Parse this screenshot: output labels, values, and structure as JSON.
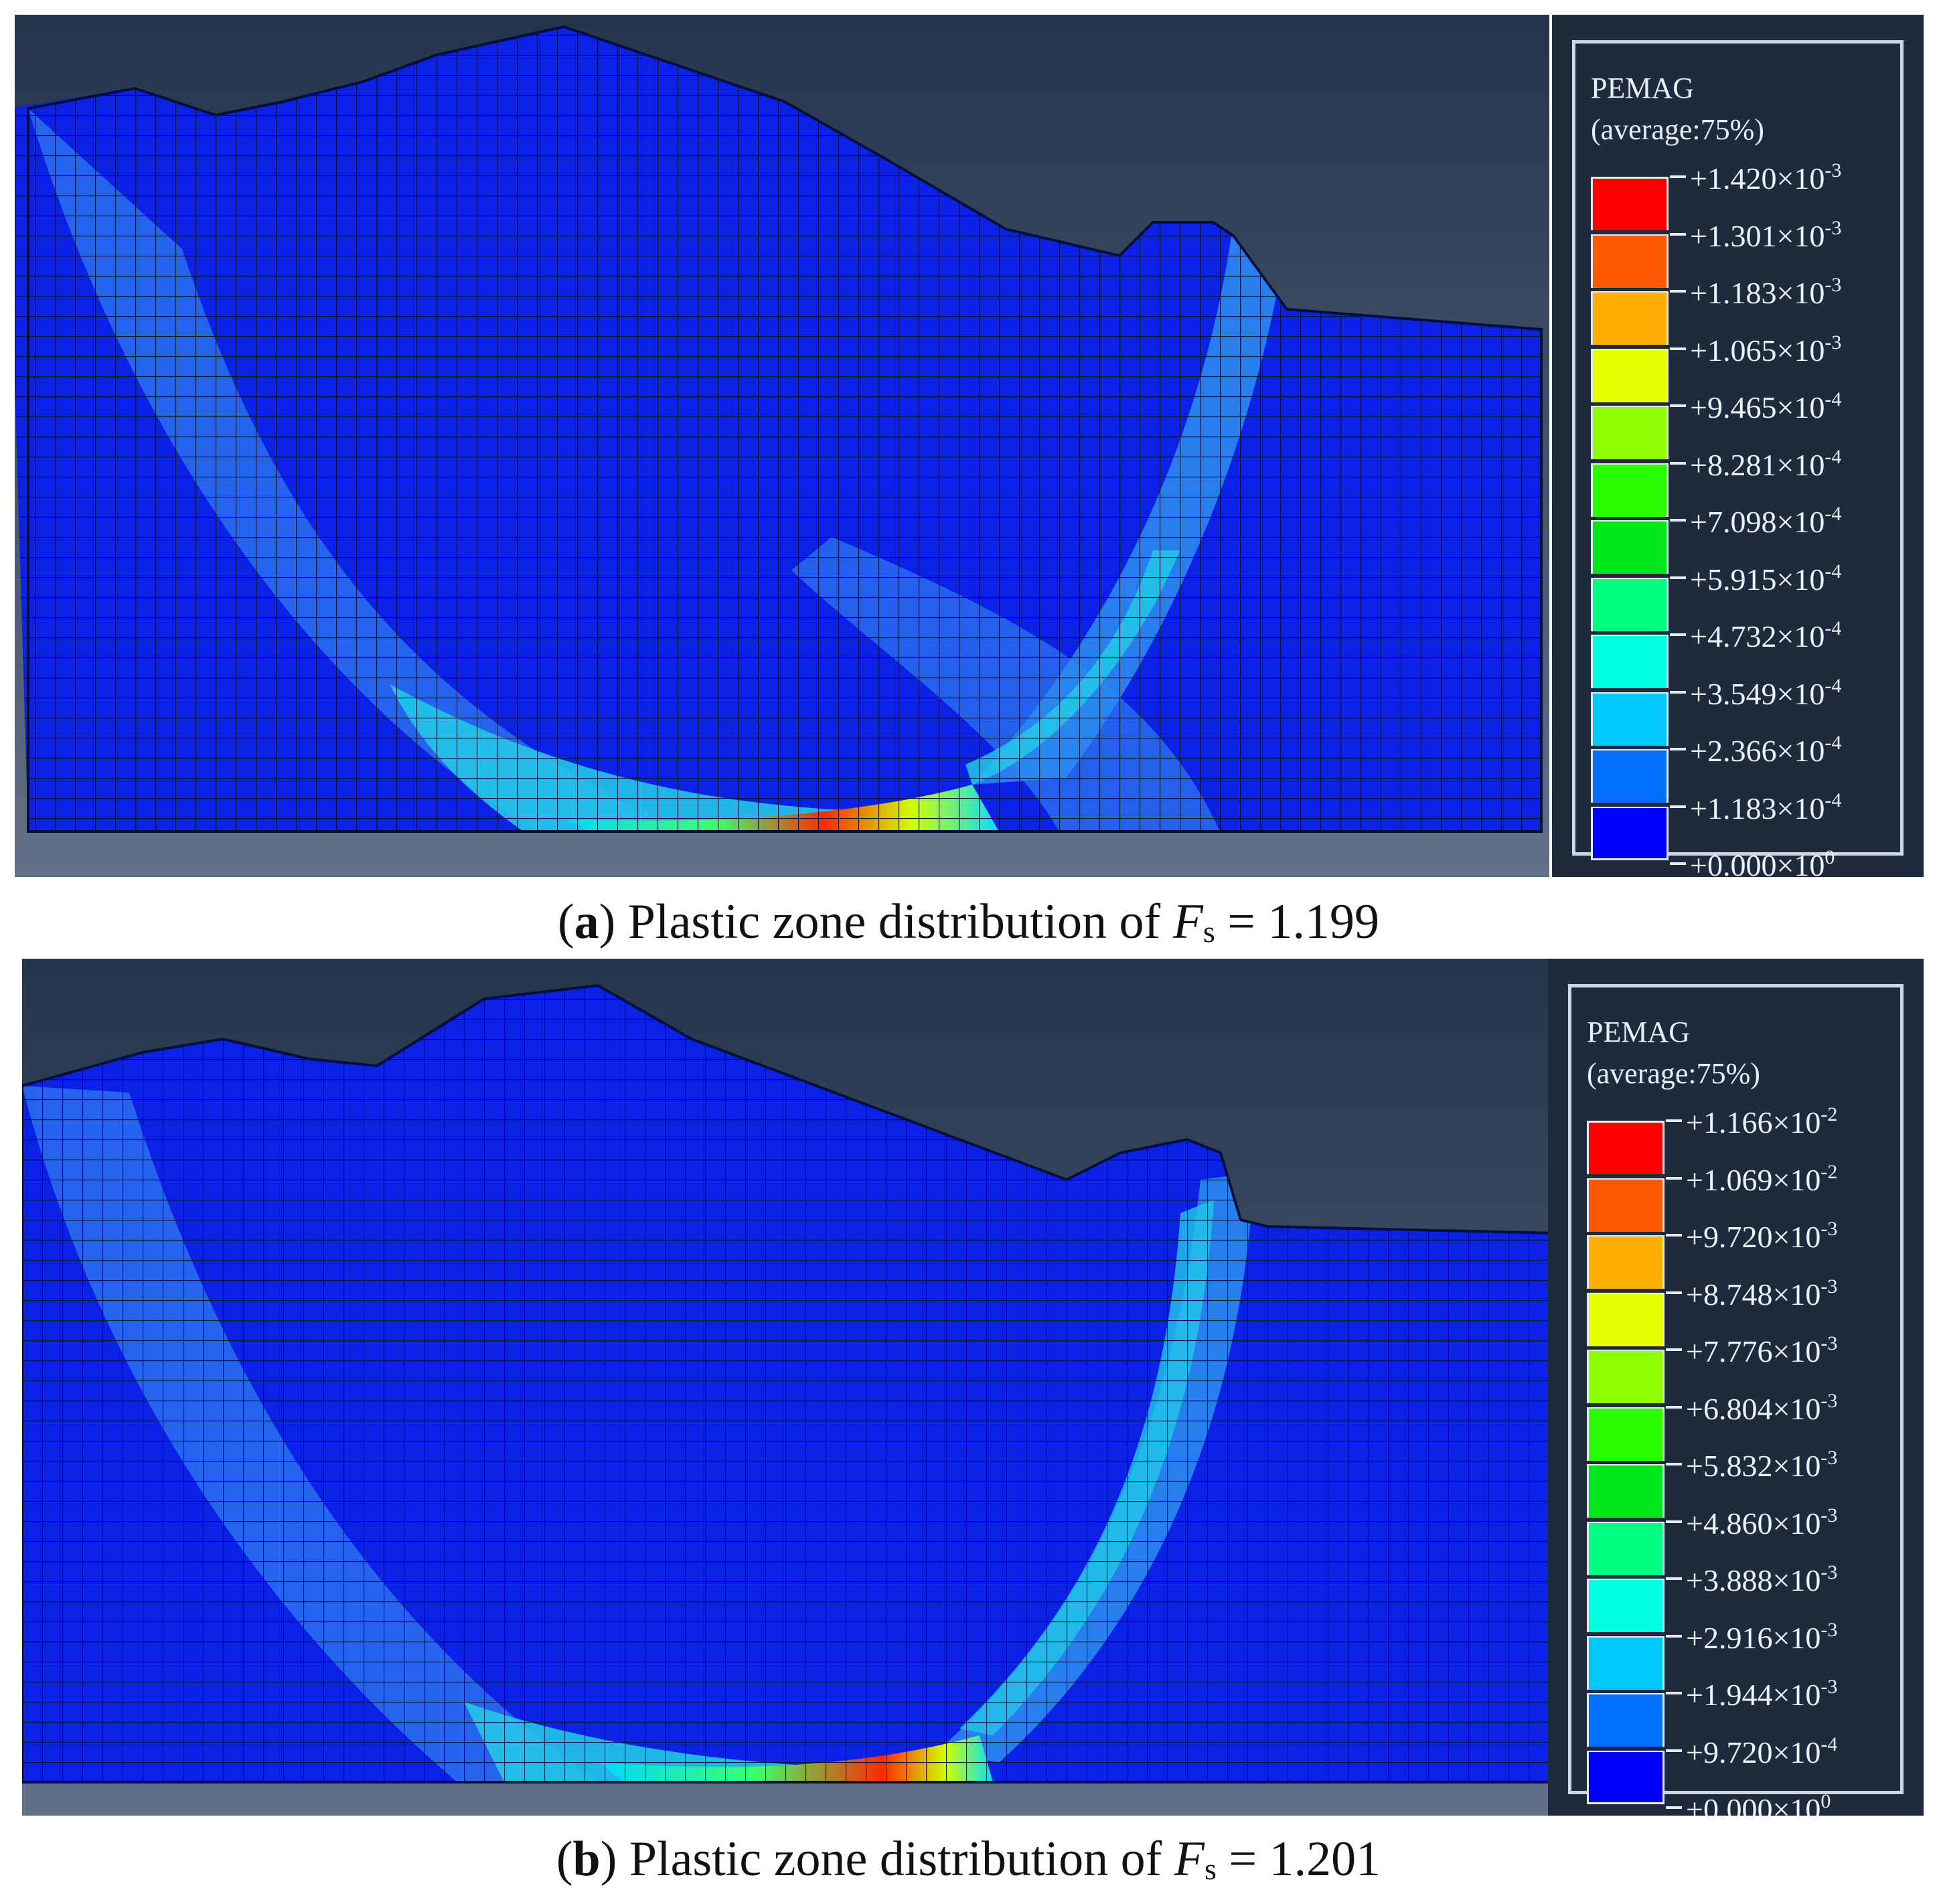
{
  "panels": [
    {
      "id": "a",
      "legend": {
        "title": "PEMAG",
        "subtitle": "(average:75%)",
        "levels": [
          {
            "mantissa": "+1.420",
            "times": "×10",
            "exp": "-3",
            "color": "#ff0000"
          },
          {
            "mantissa": "+1.301",
            "times": "×10",
            "exp": "-3",
            "color": "#ff5a00"
          },
          {
            "mantissa": "+1.183",
            "times": "×10",
            "exp": "-3",
            "color": "#ffb000"
          },
          {
            "mantissa": "+1.065",
            "times": "×10",
            "exp": "-3",
            "color": "#e6ff00"
          },
          {
            "mantissa": "+9.465",
            "times": "×10",
            "exp": "-4",
            "color": "#8eff00"
          },
          {
            "mantissa": "+8.281",
            "times": "×10",
            "exp": "-4",
            "color": "#2aff00"
          },
          {
            "mantissa": "+7.098",
            "times": "×10",
            "exp": "-4",
            "color": "#00e61c"
          },
          {
            "mantissa": "+5.915",
            "times": "×10",
            "exp": "-4",
            "color": "#00ff80"
          },
          {
            "mantissa": "+4.732",
            "times": "×10",
            "exp": "-4",
            "color": "#00ffe0"
          },
          {
            "mantissa": "+3.549",
            "times": "×10",
            "exp": "-4",
            "color": "#00c8ff"
          },
          {
            "mantissa": "+2.366",
            "times": "×10",
            "exp": "-4",
            "color": "#0070ff"
          },
          {
            "mantissa": "+1.183",
            "times": "×10",
            "exp": "-4",
            "color": "#0000ff"
          },
          {
            "mantissa": "+0.000",
            "times": "×10",
            "exp": "0",
            "color": ""
          }
        ]
      },
      "caption": {
        "letter": "a",
        "text": "Plastic zone distribution of",
        "symbol": "F",
        "subscript": "s",
        "equals": "= 1.199"
      }
    },
    {
      "id": "b",
      "legend": {
        "title": "PEMAG",
        "subtitle": "(average:75%)",
        "levels": [
          {
            "mantissa": "+1.166",
            "times": "×10",
            "exp": "-2",
            "color": "#ff0000"
          },
          {
            "mantissa": "+1.069",
            "times": "×10",
            "exp": "-2",
            "color": "#ff5a00"
          },
          {
            "mantissa": "+9.720",
            "times": "×10",
            "exp": "-3",
            "color": "#ffb000"
          },
          {
            "mantissa": "+8.748",
            "times": "×10",
            "exp": "-3",
            "color": "#e6ff00"
          },
          {
            "mantissa": "+7.776",
            "times": "×10",
            "exp": "-3",
            "color": "#8eff00"
          },
          {
            "mantissa": "+6.804",
            "times": "×10",
            "exp": "-3",
            "color": "#2aff00"
          },
          {
            "mantissa": "+5.832",
            "times": "×10",
            "exp": "-3",
            "color": "#00e61c"
          },
          {
            "mantissa": "+4.860",
            "times": "×10",
            "exp": "-3",
            "color": "#00ff80"
          },
          {
            "mantissa": "+3.888",
            "times": "×10",
            "exp": "-3",
            "color": "#00ffe0"
          },
          {
            "mantissa": "+2.916",
            "times": "×10",
            "exp": "-3",
            "color": "#00c8ff"
          },
          {
            "mantissa": "+1.944",
            "times": "×10",
            "exp": "-3",
            "color": "#0070ff"
          },
          {
            "mantissa": "+9.720",
            "times": "×10",
            "exp": "-4",
            "color": "#0000ff"
          },
          {
            "mantissa": "+0.000",
            "times": "×10",
            "exp": "0",
            "color": ""
          }
        ]
      },
      "caption": {
        "letter": "b",
        "text": "Plastic zone distribution of",
        "symbol": "F",
        "subscript": "s",
        "equals": "= 1.201"
      }
    }
  ],
  "colors": {
    "model_blue": "#0b22e6",
    "band_light": "#2a78f0",
    "band_cyan": "#25c8e8",
    "viewport_top": "#23334a",
    "viewport_bottom": "#5f6f85"
  }
}
